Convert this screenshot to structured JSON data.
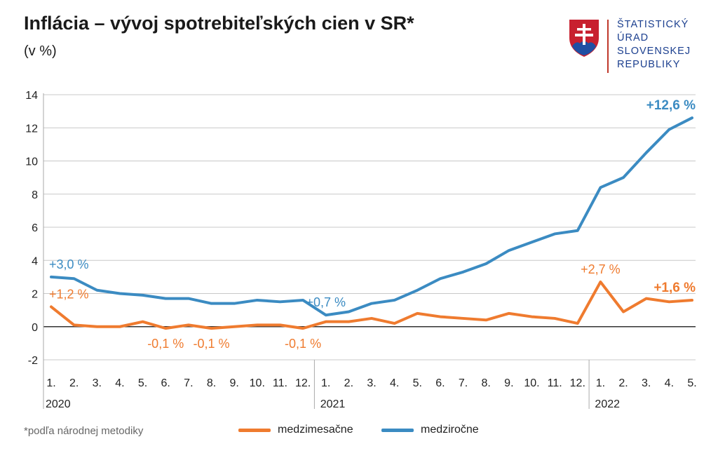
{
  "header": {
    "title": "Inflácia – vývoj spotrebiteľských cien v SR*",
    "subtitle": "(v %)"
  },
  "logo": {
    "lines": [
      "ŠTATISTICKÝ",
      "ÚRAD",
      "SLOVENSKEJ",
      "REPUBLIKY"
    ],
    "icon": "slovak-coat-of-arms-icon"
  },
  "footnote": "*podľa národnej metodiky",
  "colors": {
    "mom": "#ef7b2f",
    "yoy": "#3b8bc2",
    "grid": "#c8c8c8"
  },
  "chart_data": {
    "type": "line",
    "title": "Inflácia – vývoj spotrebiteľských cien v SR*",
    "ylabel": "(v %)",
    "ylim": [
      -2,
      14
    ],
    "yticks": [
      -2,
      0,
      2,
      4,
      6,
      8,
      10,
      12,
      14
    ],
    "grid": true,
    "legend_position": "bottom",
    "categories": [
      "1.",
      "2.",
      "3.",
      "4.",
      "5.",
      "6.",
      "7.",
      "8.",
      "9.",
      "10.",
      "11.",
      "12.",
      "1.",
      "2.",
      "3.",
      "4.",
      "5.",
      "6.",
      "7.",
      "8.",
      "9.",
      "10.",
      "11.",
      "12.",
      "1.",
      "2.",
      "3.",
      "4.",
      "5."
    ],
    "years": [
      {
        "label": "2020",
        "start": 0
      },
      {
        "label": "2021",
        "start": 12
      },
      {
        "label": "2022",
        "start": 24
      }
    ],
    "series": [
      {
        "name": "medzimesačne",
        "color": "#ef7b2f",
        "values": [
          1.2,
          0.1,
          0.0,
          0.0,
          0.3,
          -0.1,
          0.1,
          -0.1,
          0.0,
          0.1,
          0.1,
          -0.1,
          0.3,
          0.3,
          0.5,
          0.2,
          0.8,
          0.6,
          0.5,
          0.4,
          0.8,
          0.6,
          0.5,
          0.2,
          2.7,
          0.9,
          1.7,
          1.5,
          1.6
        ]
      },
      {
        "name": "medziročne",
        "color": "#3b8bc2",
        "values": [
          3.0,
          2.9,
          2.2,
          2.0,
          1.9,
          1.7,
          1.7,
          1.4,
          1.4,
          1.6,
          1.5,
          1.6,
          0.7,
          0.9,
          1.4,
          1.6,
          2.2,
          2.9,
          3.3,
          3.8,
          4.6,
          5.1,
          5.6,
          5.8,
          8.4,
          9.0,
          10.5,
          11.9,
          12.6
        ]
      }
    ],
    "annotations": [
      {
        "text": "+3,0 %",
        "series": 1,
        "index": 0,
        "position": "above",
        "bold": false
      },
      {
        "text": "+1,2 %",
        "series": 0,
        "index": 0,
        "position": "above",
        "bold": false
      },
      {
        "text": "-0,1 %",
        "series": 0,
        "index": 5,
        "position": "below",
        "bold": false
      },
      {
        "text": "-0,1 %",
        "series": 0,
        "index": 7,
        "position": "below",
        "bold": false
      },
      {
        "text": "-0,1 %",
        "series": 0,
        "index": 11,
        "position": "below",
        "bold": false
      },
      {
        "text": "+0,7 %",
        "series": 1,
        "index": 12,
        "position": "above",
        "bold": false
      },
      {
        "text": "+2,7 %",
        "series": 0,
        "index": 24,
        "position": "above",
        "bold": false
      },
      {
        "text": "+1,6 %",
        "series": 0,
        "index": 28,
        "position": "above",
        "bold": true
      },
      {
        "text": "+12,6 %",
        "series": 1,
        "index": 28,
        "position": "above",
        "bold": true
      }
    ]
  }
}
